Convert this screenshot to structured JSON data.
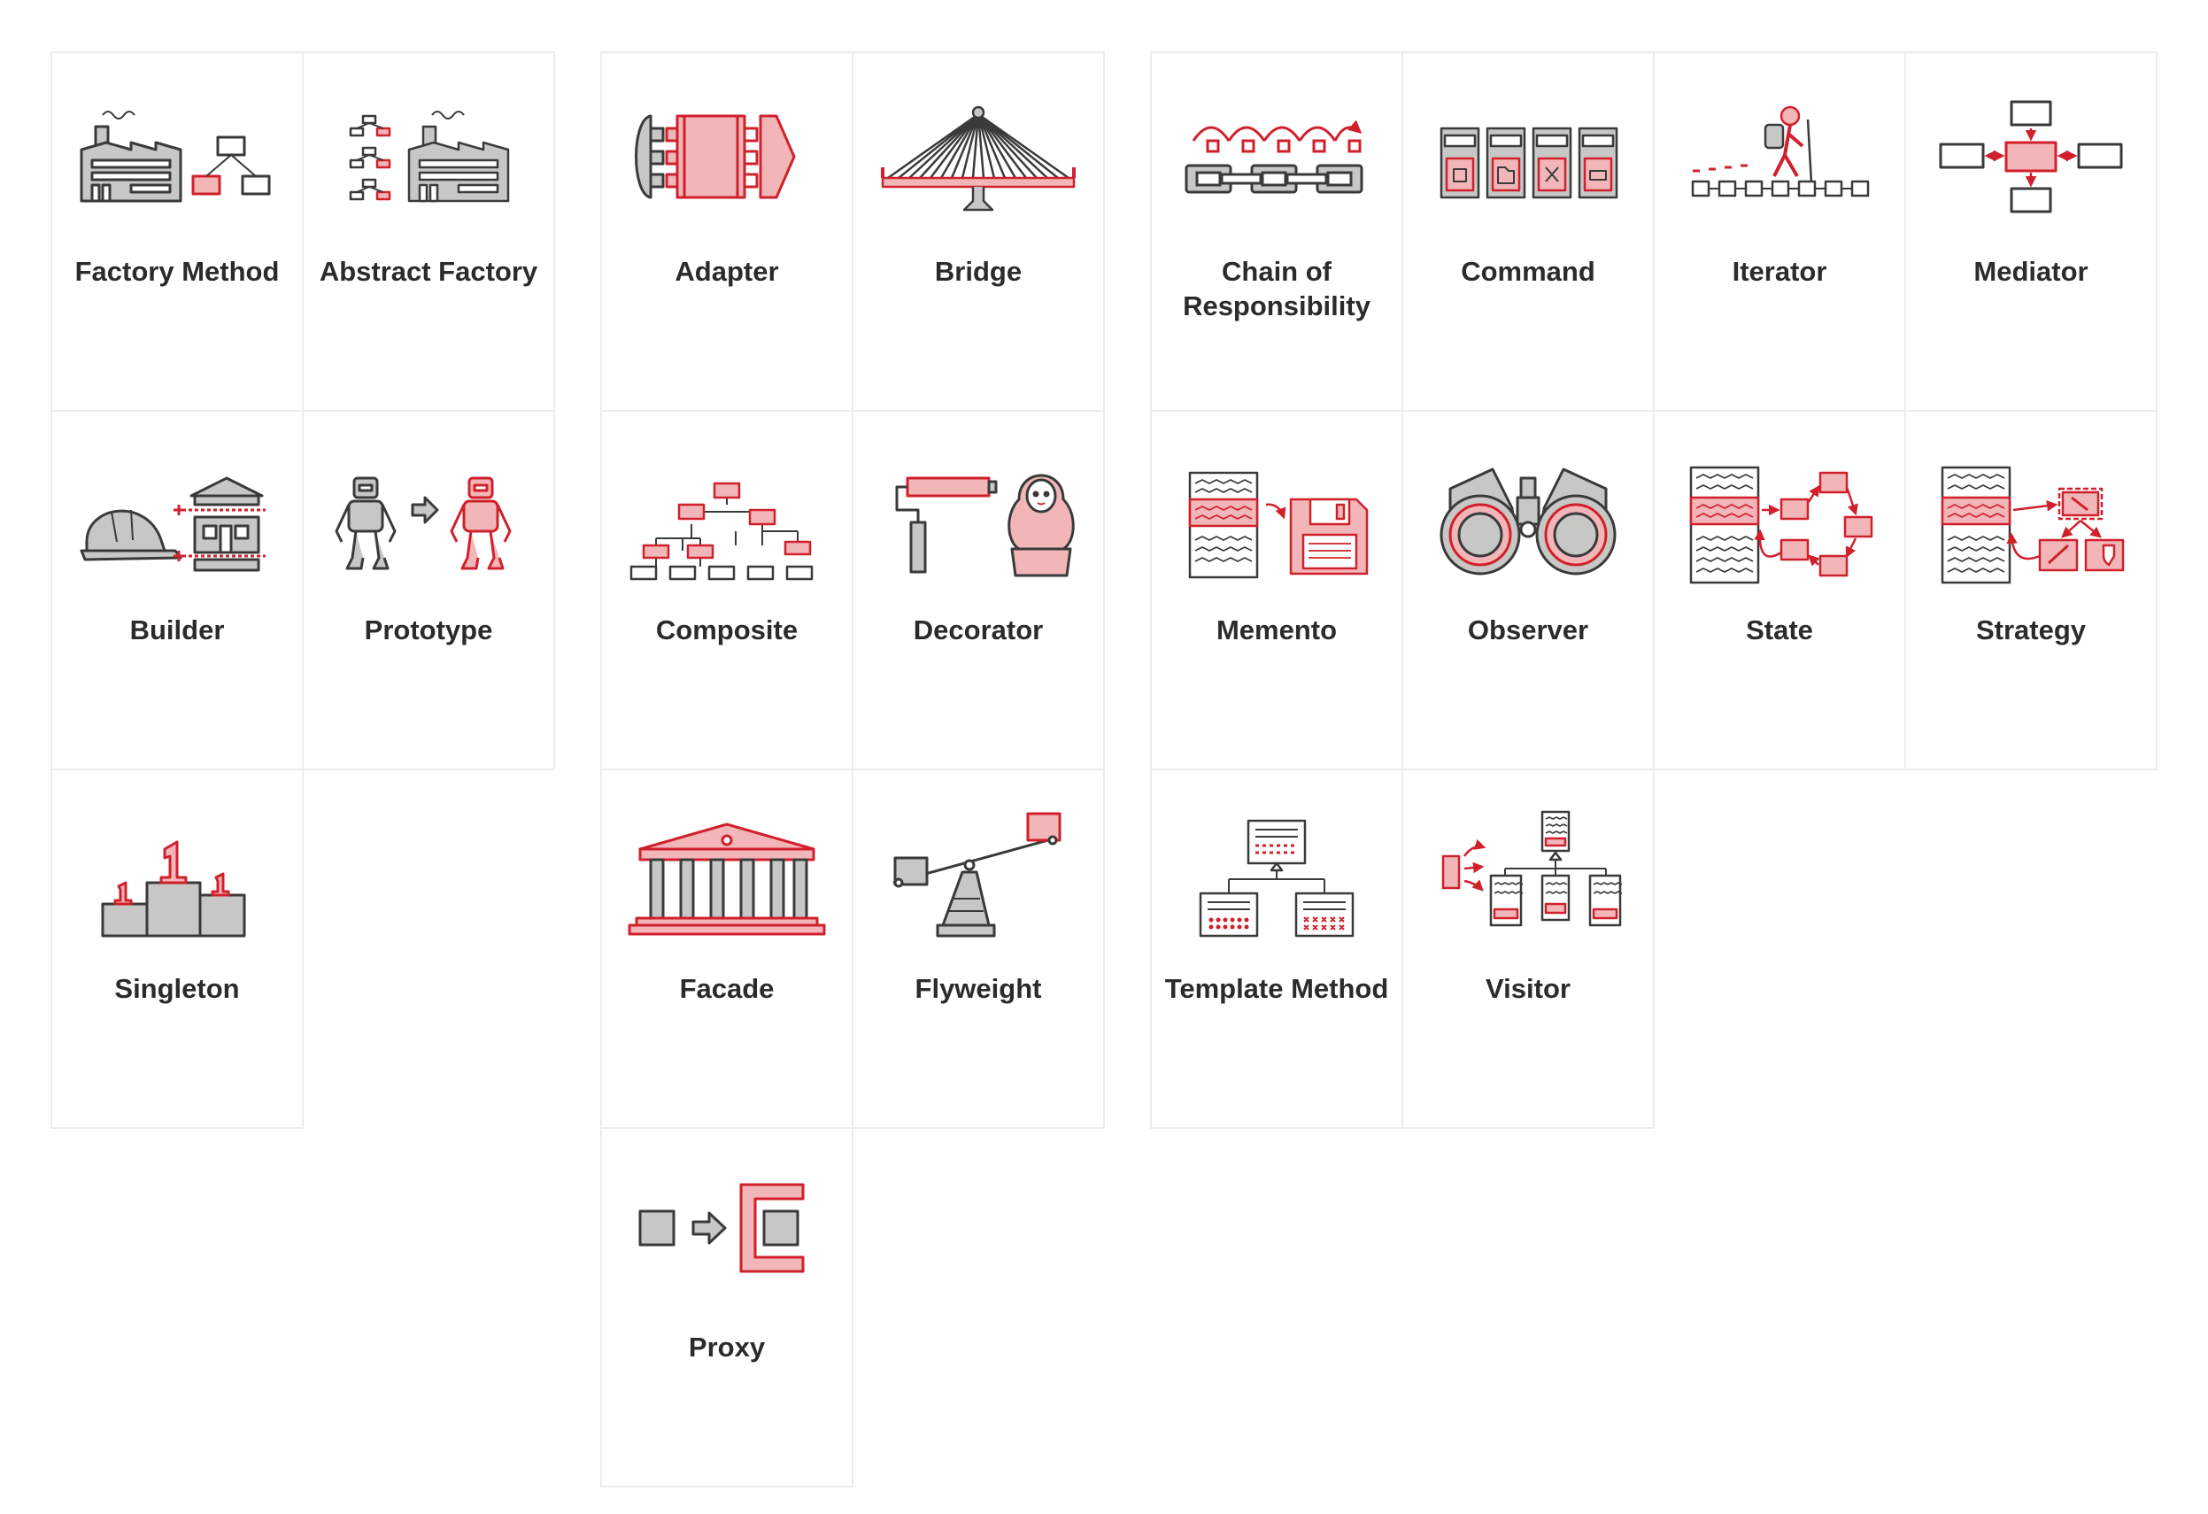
{
  "colors": {
    "accent": "#d0202c",
    "accent_fill": "#f2b6b8",
    "gray_fill": "#c7c8c6",
    "outline": "#3a3a3a",
    "border": "#ececec",
    "text": "#2b2b2b"
  },
  "groups": [
    {
      "cards": [
        {
          "label": "Factory Method",
          "icon": "factory-icon"
        },
        {
          "label": "Abstract Factory",
          "icon": "abstract-factory-icon"
        },
        {
          "label": "Builder",
          "icon": "builder-icon"
        },
        {
          "label": "Prototype",
          "icon": "prototype-icon"
        },
        {
          "label": "Singleton",
          "icon": "singleton-icon"
        }
      ]
    },
    {
      "cards": [
        {
          "label": "Adapter",
          "icon": "adapter-icon"
        },
        {
          "label": "Bridge",
          "icon": "bridge-icon"
        },
        {
          "label": "Composite",
          "icon": "composite-icon"
        },
        {
          "label": "Decorator",
          "icon": "decorator-icon"
        },
        {
          "label": "Facade",
          "icon": "facade-icon"
        },
        {
          "label": "Flyweight",
          "icon": "flyweight-icon"
        },
        {
          "label": "Proxy",
          "icon": "proxy-icon"
        }
      ]
    },
    {
      "cards": [
        {
          "label": "Chain of Responsibility",
          "icon": "chain-icon"
        },
        {
          "label": "Command",
          "icon": "command-icon"
        },
        {
          "label": "Iterator",
          "icon": "iterator-icon"
        },
        {
          "label": "Mediator",
          "icon": "mediator-icon"
        },
        {
          "label": "Memento",
          "icon": "memento-icon"
        },
        {
          "label": "Observer",
          "icon": "observer-icon"
        },
        {
          "label": "State",
          "icon": "state-icon"
        },
        {
          "label": "Strategy",
          "icon": "strategy-icon"
        },
        {
          "label": "Template Method",
          "icon": "template-method-icon"
        },
        {
          "label": "Visitor",
          "icon": "visitor-icon"
        }
      ]
    }
  ]
}
